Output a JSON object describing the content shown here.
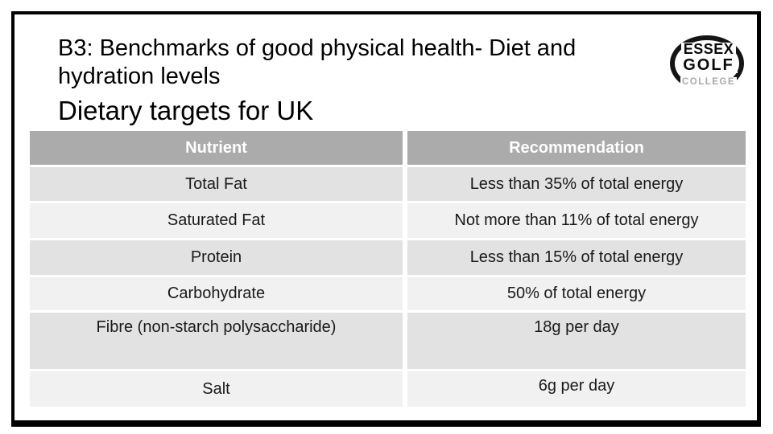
{
  "slide": {
    "title": "B3: Benchmarks of good physical health- Diet and\nhydration levels",
    "subtitle": "Dietary targets for UK"
  },
  "logo": {
    "line1": "ESSEX",
    "line2": "GOLF",
    "line3": "COLLEGE"
  },
  "table": {
    "headers": [
      "Nutrient",
      "Recommendation"
    ],
    "rows": [
      [
        "Total Fat",
        "Less than 35% of total energy"
      ],
      [
        "Saturated Fat",
        "Not more than 11% of total energy"
      ],
      [
        "Protein",
        "Less than 15% of total energy"
      ],
      [
        "Carbohydrate",
        "50% of total energy"
      ],
      [
        "Fibre (non-starch polysaccharide)",
        "18g per day"
      ],
      [
        "Salt",
        "6g per day"
      ]
    ]
  },
  "colors": {
    "header_bg": "#ababab",
    "header_text": "#ffffff",
    "row_odd_bg": "#e2e2e2",
    "row_even_bg": "#f1f1f1",
    "border": "#000000"
  }
}
